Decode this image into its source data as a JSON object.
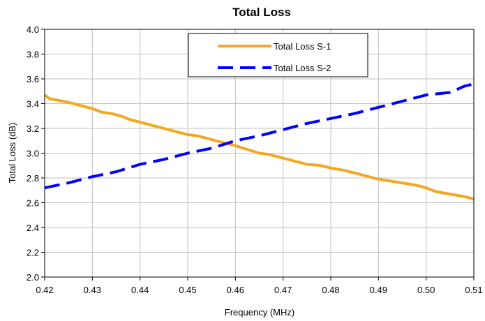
{
  "chart_data": {
    "type": "line",
    "title": "Total Loss",
    "xlabel": "Frequency (MHz)",
    "ylabel": "Total Loss (dB)",
    "xlim": [
      0.42,
      0.51
    ],
    "ylim": [
      2.0,
      4.0
    ],
    "x_ticks": [
      "0.42",
      "0.43",
      "0.44",
      "0.45",
      "0.46",
      "0.47",
      "0.48",
      "0.49",
      "0.50",
      "0.51"
    ],
    "y_ticks": [
      "2.0",
      "2.2",
      "2.4",
      "2.6",
      "2.8",
      "3.0",
      "3.2",
      "3.4",
      "3.6",
      "3.8",
      "4.0"
    ],
    "grid": true,
    "legend_position": "top-center",
    "series": [
      {
        "name": "Total Loss S-1",
        "color": "#f5a623",
        "style": "solid",
        "x": [
          0.42,
          0.421,
          0.425,
          0.43,
          0.432,
          0.434,
          0.436,
          0.438,
          0.44,
          0.445,
          0.45,
          0.452,
          0.455,
          0.46,
          0.465,
          0.467,
          0.47,
          0.475,
          0.478,
          0.48,
          0.483,
          0.485,
          0.49,
          0.495,
          0.498,
          0.5,
          0.502,
          0.505,
          0.508,
          0.51
        ],
        "y": [
          3.47,
          3.44,
          3.41,
          3.36,
          3.33,
          3.32,
          3.3,
          3.27,
          3.25,
          3.2,
          3.15,
          3.14,
          3.11,
          3.06,
          3.0,
          2.99,
          2.96,
          2.91,
          2.9,
          2.88,
          2.86,
          2.84,
          2.79,
          2.76,
          2.74,
          2.72,
          2.69,
          2.67,
          2.65,
          2.63
        ]
      },
      {
        "name": "Total Loss S-2",
        "color": "#0000ff",
        "style": "dashed",
        "x": [
          0.42,
          0.425,
          0.43,
          0.435,
          0.44,
          0.445,
          0.45,
          0.455,
          0.46,
          0.465,
          0.47,
          0.475,
          0.48,
          0.485,
          0.49,
          0.495,
          0.5,
          0.505,
          0.508,
          0.51
        ],
        "y": [
          2.72,
          2.76,
          2.81,
          2.85,
          2.91,
          2.95,
          3.0,
          3.04,
          3.1,
          3.14,
          3.19,
          3.24,
          3.28,
          3.32,
          3.37,
          3.42,
          3.47,
          3.49,
          3.54,
          3.56
        ]
      }
    ]
  }
}
